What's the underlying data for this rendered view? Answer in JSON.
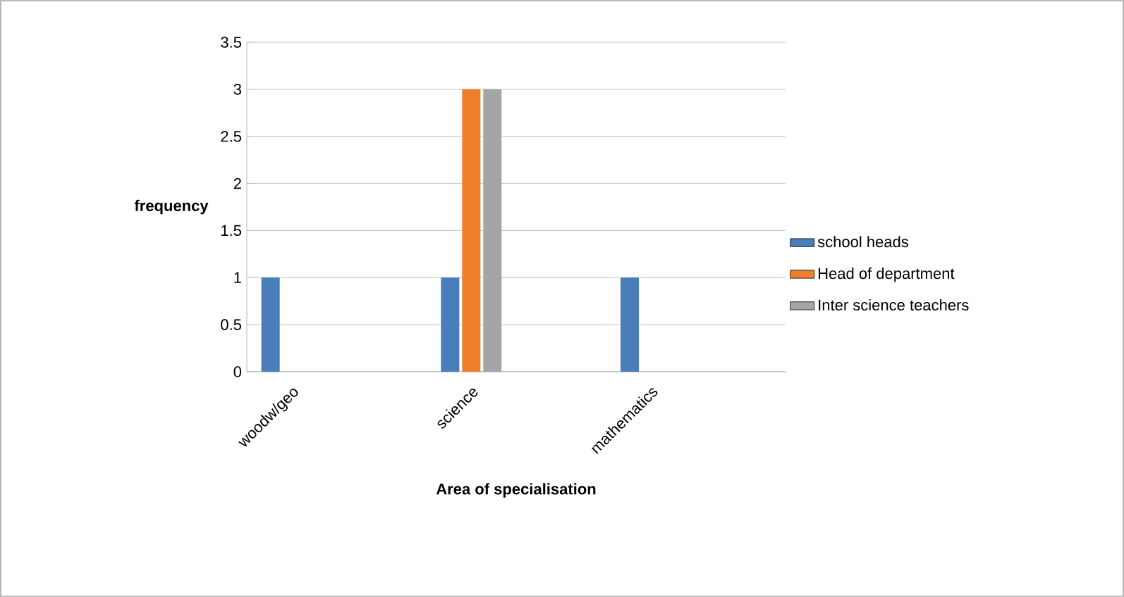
{
  "chart_data": {
    "type": "bar",
    "xlabel": "Area of specialisation",
    "ylabel": "frequency",
    "categories": [
      "woodw/geo",
      null,
      "science",
      null,
      "mathematics",
      null
    ],
    "series": [
      {
        "name": "school heads",
        "color": "#4a7ebb",
        "values": [
          1,
          null,
          1,
          null,
          1,
          null
        ]
      },
      {
        "name": "Head of department",
        "color": "#f07f2b",
        "values": [
          null,
          null,
          3,
          null,
          null,
          null
        ]
      },
      {
        "name": "Inter science teachers",
        "color": "#a5a5a5",
        "values": [
          null,
          null,
          3,
          null,
          null,
          null
        ]
      }
    ],
    "ylim": [
      0,
      3.5
    ],
    "yticks": [
      0,
      0.5,
      1,
      1.5,
      2,
      2.5,
      3,
      3.5
    ],
    "grid": "y",
    "legend": "right"
  }
}
